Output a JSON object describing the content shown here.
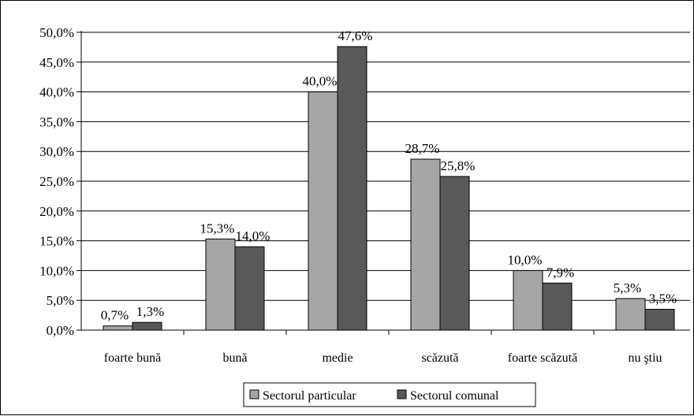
{
  "chart_data": {
    "type": "bar",
    "title": "",
    "xlabel": "",
    "ylabel": "",
    "categories": [
      "foarte bună",
      "bună",
      "medie",
      "scăzută",
      "foarte scăzută",
      "nu ştiu"
    ],
    "series": [
      {
        "name": "Sectorul particular",
        "values": [
          0.7,
          15.3,
          40.0,
          28.7,
          10.0,
          5.3
        ],
        "labels": [
          "0,7%",
          "15,3%",
          "40,0%",
          "28,7%",
          "10,0%",
          "5,3%"
        ],
        "color": "#a6a6a6"
      },
      {
        "name": "Sectorul comunal",
        "values": [
          1.3,
          14.0,
          47.6,
          25.8,
          7.9,
          3.5
        ],
        "labels": [
          "1,3%",
          "14,0%",
          "47,6%",
          "25,8%",
          "7,9%",
          "3,5%"
        ],
        "color": "#595959"
      }
    ],
    "ylim": [
      0,
      50
    ],
    "yticks": [
      "0,0%",
      "5,0%",
      "10,0%",
      "15,0%",
      "20,0%",
      "25,0%",
      "30,0%",
      "35,0%",
      "40,0%",
      "45,0%",
      "50,0%"
    ],
    "grid": true,
    "legend_position": "bottom"
  }
}
